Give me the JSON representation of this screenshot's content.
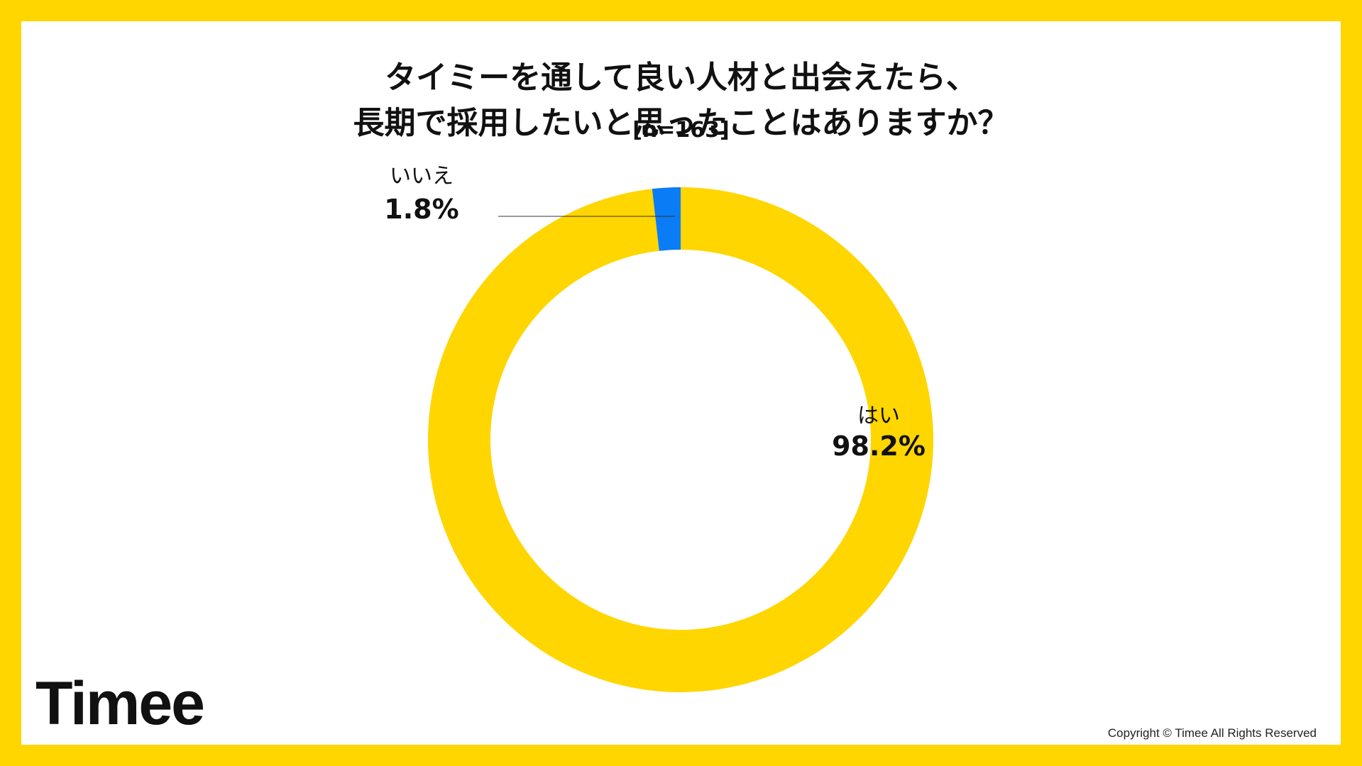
{
  "title_line1": "タイミーを通して良い人材と出会えたら、",
  "title_line2": "長期で採用したいと思ったことはありますか？",
  "sample_size": "[n=163]",
  "chart_data": {
    "type": "pie",
    "categories": [
      "はい",
      "いいえ"
    ],
    "values": [
      98.2,
      1.8
    ],
    "value_labels": [
      "98.2%",
      "1.8%"
    ],
    "colors": [
      "#FFD600",
      "#0A7CF5"
    ],
    "title": "タイミーを通して良い人材と出会えたら、長期で採用したいと思ったことはありますか？",
    "subtitle": "[n=163]",
    "donut": true,
    "legend": "none"
  },
  "brand": {
    "logo_text": "Timee",
    "copyright": "Copyright © Timee All Rights Reserved",
    "frame_color": "#FFD600"
  }
}
